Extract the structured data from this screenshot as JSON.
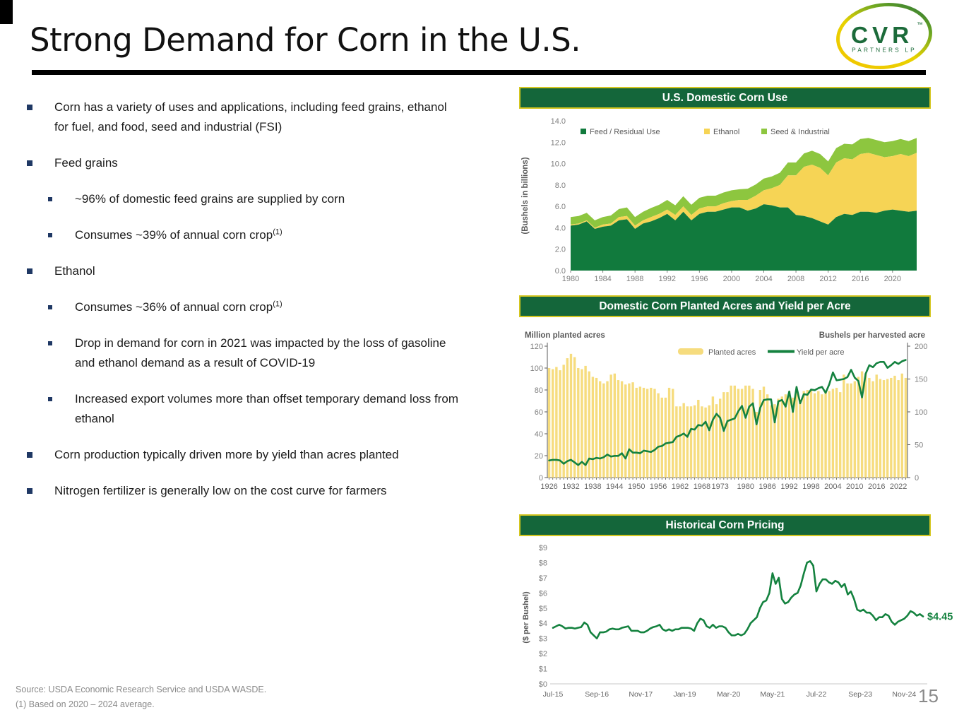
{
  "slide": {
    "title": "Strong Demand for Corn in the U.S.",
    "page_number": "15",
    "logo": {
      "brand": "CVR",
      "tm": "™",
      "subbrand": "PARTNERS LP",
      "green": "#1C6B3A",
      "yellow": "#F3C400"
    },
    "footer": {
      "source": "Source:  USDA Economic Research Service and USDA WASDE.",
      "footnote": "(1)    Based on 2020 – 2024 average."
    }
  },
  "bullets": [
    {
      "level": 1,
      "text": "Corn has a variety of uses and applications, including feed grains, ethanol for fuel, and food, seed and industrial (FSI)"
    },
    {
      "level": 1,
      "text": "Feed grains"
    },
    {
      "level": 2,
      "text": "~96% of domestic feed grains are supplied by corn"
    },
    {
      "level": 2,
      "text": "Consumes ~39% of annual corn crop",
      "sup": "(1)"
    },
    {
      "level": 1,
      "text": "Ethanol"
    },
    {
      "level": 2,
      "text": "Consumes ~36% of annual corn crop",
      "sup": "(1)"
    },
    {
      "level": 2,
      "text": "Drop in demand for corn in 2021 was impacted by the loss of gasoline and ethanol demand as a result of COVID-19"
    },
    {
      "level": 2,
      "text": "Increased export volumes more than offset temporary demand loss from ethanol"
    },
    {
      "level": 1,
      "text": "Corn production typically driven more by yield than acres planted"
    },
    {
      "level": 1,
      "text": "Nitrogen fertilizer is generally low on the cost curve for farmers"
    }
  ],
  "chart_data": [
    {
      "type": "area",
      "stacked": true,
      "title": "U.S. Domestic Corn Use",
      "ylabel": "(Bushels in billions)",
      "ylim": [
        0,
        14
      ],
      "yticks": [
        0,
        2,
        4,
        6,
        8,
        10,
        12,
        14
      ],
      "x_start": 1980,
      "x_end": 2023,
      "xticks": [
        1980,
        1984,
        1988,
        1992,
        1996,
        2000,
        2004,
        2008,
        2012,
        2016,
        2020
      ],
      "legend_position": "top-left-inside",
      "series": [
        {
          "name": "Feed / Residual Use",
          "color": "#117A3D",
          "values": [
            4.2,
            4.3,
            4.6,
            3.9,
            4.1,
            4.2,
            4.7,
            4.8,
            3.9,
            4.4,
            4.6,
            4.9,
            5.3,
            4.7,
            5.5,
            4.7,
            5.3,
            5.5,
            5.5,
            5.7,
            5.9,
            5.9,
            5.6,
            5.8,
            6.2,
            6.1,
            5.9,
            5.9,
            5.2,
            5.1,
            4.9,
            4.6,
            4.3,
            5.0,
            5.3,
            5.2,
            5.5,
            5.5,
            5.4,
            5.6,
            5.7,
            5.6,
            5.5,
            5.6
          ]
        },
        {
          "name": "Ethanol",
          "color": "#F6D455",
          "values": [
            0.1,
            0.1,
            0.1,
            0.1,
            0.2,
            0.2,
            0.3,
            0.3,
            0.3,
            0.3,
            0.4,
            0.4,
            0.4,
            0.5,
            0.5,
            0.5,
            0.5,
            0.5,
            0.5,
            0.6,
            0.6,
            0.7,
            1.0,
            1.2,
            1.3,
            1.6,
            2.1,
            3.0,
            3.7,
            4.6,
            5.0,
            5.0,
            4.6,
            5.1,
            5.2,
            5.2,
            5.4,
            5.5,
            5.4,
            5.0,
            5.0,
            5.3,
            5.2,
            5.4
          ]
        },
        {
          "name": "Seed & Industrial",
          "color": "#8DC63F",
          "values": [
            0.7,
            0.7,
            0.7,
            0.7,
            0.7,
            0.75,
            0.75,
            0.8,
            0.8,
            0.8,
            0.85,
            0.85,
            0.9,
            0.9,
            0.95,
            0.95,
            1.0,
            1.0,
            1.0,
            1.0,
            1.0,
            1.0,
            1.05,
            1.05,
            1.1,
            1.1,
            1.15,
            1.2,
            1.2,
            1.25,
            1.3,
            1.3,
            1.3,
            1.35,
            1.35,
            1.4,
            1.4,
            1.4,
            1.4,
            1.4,
            1.4,
            1.4,
            1.4,
            1.4
          ]
        }
      ]
    },
    {
      "type": "bar+line",
      "title": "Domestic Corn Planted Acres and Yield per Acre",
      "left_axis_label": "Million planted acres",
      "right_axis_label": "Bushels per harvested acre",
      "ylim_left": [
        0,
        120
      ],
      "yticks_left": [
        0,
        20,
        40,
        60,
        80,
        100,
        120
      ],
      "ylim_right": [
        0,
        200
      ],
      "yticks_right": [
        0,
        50,
        100,
        150,
        200
      ],
      "x_start": 1926,
      "x_end": 2024,
      "xticks": [
        1926,
        1932,
        1938,
        1944,
        1950,
        1956,
        1962,
        1968,
        1973,
        1980,
        1986,
        1992,
        1998,
        2004,
        2010,
        2016,
        2022
      ],
      "bars": {
        "name": "Planted acres",
        "color": "#F6DC7E",
        "values": [
          100,
          99,
          101,
          98,
          103,
          109,
          113,
          110,
          100,
          99,
          102,
          97,
          92,
          91,
          88,
          86,
          88,
          94,
          95,
          89,
          88,
          85,
          86,
          87,
          82,
          83,
          82,
          81,
          82,
          81,
          77,
          73,
          73,
          82,
          81,
          65,
          65,
          68,
          65,
          65,
          66,
          71,
          65,
          64,
          66,
          74,
          67,
          72,
          78,
          78,
          84,
          84,
          81,
          81,
          84,
          84,
          81,
          60,
          80,
          83,
          76,
          66,
          67,
          72,
          74,
          76,
          79,
          73,
          79,
          71,
          79,
          80,
          80,
          77,
          79,
          76,
          79,
          79,
          81,
          82,
          78,
          94,
          86,
          86,
          88,
          92,
          97,
          95,
          91,
          88,
          94,
          90,
          89,
          90,
          91,
          93,
          89,
          95,
          91
        ]
      },
      "line": {
        "name": "Yield per acre",
        "color": "#14823F",
        "values": [
          26,
          27,
          27,
          26,
          21,
          25,
          27,
          23,
          19,
          24,
          19,
          29,
          28,
          30,
          29,
          31,
          35,
          32,
          33,
          33,
          37,
          29,
          43,
          38,
          38,
          37,
          41,
          40,
          39,
          42,
          47,
          48,
          52,
          53,
          54,
          62,
          64,
          67,
          62,
          74,
          73,
          80,
          79,
          85,
          72,
          88,
          97,
          91,
          71,
          86,
          88,
          90,
          101,
          109,
          91,
          108,
          113,
          81,
          106,
          118,
          119,
          119,
          84,
          116,
          118,
          108,
          131,
          100,
          138,
          113,
          127,
          126,
          134,
          133,
          136,
          138,
          129,
          142,
          160,
          148,
          149,
          150,
          153,
          164,
          152,
          147,
          122,
          158,
          171,
          168,
          174,
          176,
          176,
          167,
          171,
          176,
          173,
          177,
          179
        ]
      }
    },
    {
      "type": "line",
      "title": "Historical Corn Pricing",
      "ylabel": "($ per Bushel)",
      "ylim": [
        0,
        9
      ],
      "yticks": [
        0,
        1,
        2,
        3,
        4,
        5,
        6,
        7,
        8,
        9
      ],
      "xticks": [
        "Jul-15",
        "Sep-16",
        "Nov-17",
        "Jan-19",
        "Mar-20",
        "May-21",
        "Jul-22",
        "Sep-23",
        "Nov-24"
      ],
      "xtick_indices": [
        0,
        14,
        28,
        42,
        56,
        70,
        84,
        98,
        112
      ],
      "end_label": "$4.45",
      "color": "#14823F",
      "values": [
        3.7,
        3.8,
        3.9,
        3.8,
        3.65,
        3.7,
        3.7,
        3.65,
        3.7,
        3.75,
        4.05,
        3.9,
        3.4,
        3.2,
        3.0,
        3.4,
        3.4,
        3.45,
        3.6,
        3.65,
        3.6,
        3.6,
        3.7,
        3.75,
        3.8,
        3.5,
        3.5,
        3.5,
        3.4,
        3.4,
        3.5,
        3.65,
        3.75,
        3.8,
        3.9,
        3.6,
        3.5,
        3.6,
        3.5,
        3.6,
        3.6,
        3.7,
        3.7,
        3.7,
        3.65,
        3.5,
        4.0,
        4.3,
        4.2,
        3.8,
        3.7,
        3.9,
        3.7,
        3.8,
        3.8,
        3.7,
        3.4,
        3.2,
        3.2,
        3.3,
        3.2,
        3.3,
        3.6,
        4.0,
        4.2,
        4.4,
        5.0,
        5.4,
        5.5,
        6.0,
        7.3,
        6.6,
        7.0,
        5.6,
        5.3,
        5.4,
        5.7,
        5.9,
        6.0,
        6.5,
        7.3,
        8.0,
        8.1,
        7.8,
        6.1,
        6.6,
        6.9,
        6.9,
        6.7,
        6.6,
        6.8,
        6.7,
        6.4,
        6.6,
        5.9,
        6.1,
        5.6,
        4.9,
        4.8,
        4.9,
        4.7,
        4.7,
        4.5,
        4.2,
        4.4,
        4.4,
        4.6,
        4.5,
        4.1,
        3.9,
        4.1,
        4.2,
        4.3,
        4.5,
        4.8,
        4.7,
        4.5,
        4.6,
        4.45
      ]
    }
  ]
}
